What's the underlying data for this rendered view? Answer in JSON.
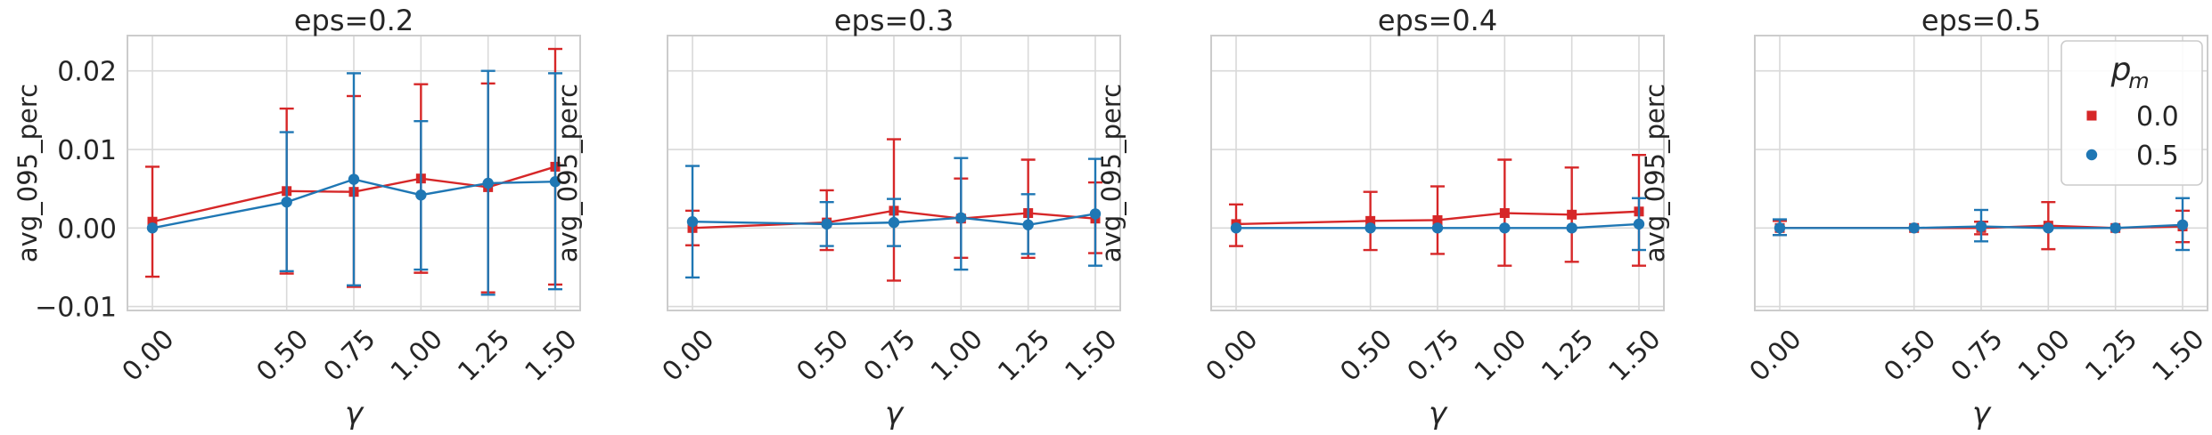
{
  "colors": {
    "s0": "#d62728",
    "s1": "#1f77b4",
    "grid": "#d9d9d9",
    "frame": "#cccccc"
  },
  "legend": {
    "title": "p",
    "title_sub": "m",
    "items": [
      {
        "label": "0.0",
        "marker": "square",
        "color": "#d62728"
      },
      {
        "label": "0.5",
        "marker": "circle",
        "color": "#1f77b4"
      }
    ]
  },
  "chart_data": [
    {
      "type": "line",
      "title": "eps=0.2",
      "xlabel": "γ",
      "ylabel": "avg_095_perc",
      "x": [
        0.0,
        0.5,
        0.75,
        1.0,
        1.25,
        1.5
      ],
      "x_tick_labels": [
        "0.00",
        "0.50",
        "0.75",
        "1.00",
        "1.25",
        "1.50"
      ],
      "y_ticks": [
        -0.01,
        0.0,
        0.01,
        0.02
      ],
      "y_tick_labels": [
        "−0.01",
        "0.00",
        "0.01",
        "0.02"
      ],
      "ylim": [
        -0.0105,
        0.0245
      ],
      "series": [
        {
          "name": "0.0",
          "marker": "square",
          "values": [
            0.0008,
            0.0047,
            0.0046,
            0.0063,
            0.0052,
            0.0078
          ],
          "err_low": [
            -0.0062,
            -0.0058,
            -0.0075,
            -0.0057,
            -0.0082,
            -0.0072
          ],
          "err_high": [
            0.0078,
            0.0152,
            0.0168,
            0.0183,
            0.0184,
            0.0228
          ]
        },
        {
          "name": "0.5",
          "marker": "circle",
          "values": [
            0.0,
            0.0033,
            0.0062,
            0.0042,
            0.0057,
            0.0059
          ],
          "err_low": [
            null,
            -0.0055,
            -0.0073,
            -0.0053,
            -0.0085,
            -0.0078
          ],
          "err_high": [
            null,
            0.0122,
            0.0197,
            0.0136,
            0.02,
            0.0197
          ]
        }
      ]
    },
    {
      "type": "line",
      "title": "eps=0.3",
      "xlabel": "γ",
      "ylabel": "avg_095_perc",
      "x": [
        0.0,
        0.5,
        0.75,
        1.0,
        1.25,
        1.5
      ],
      "x_tick_labels": [
        "0.00",
        "0.50",
        "0.75",
        "1.00",
        "1.25",
        "1.50"
      ],
      "y_ticks": [
        -0.01,
        0.0,
        0.01,
        0.02
      ],
      "y_tick_labels": [
        "",
        "",
        "",
        ""
      ],
      "ylim": [
        -0.0105,
        0.0245
      ],
      "series": [
        {
          "name": "0.0",
          "marker": "square",
          "values": [
            0.0,
            0.0007,
            0.0022,
            0.0012,
            0.0019,
            0.0012
          ],
          "err_low": [
            -0.0022,
            -0.0028,
            -0.0067,
            -0.0038,
            -0.0038,
            -0.0032
          ],
          "err_high": [
            0.0022,
            0.0048,
            0.0113,
            0.0063,
            0.0087,
            0.0058
          ]
        },
        {
          "name": "0.5",
          "marker": "circle",
          "values": [
            0.0008,
            0.0005,
            0.0007,
            0.0013,
            0.0004,
            0.0018
          ],
          "err_low": [
            -0.0063,
            -0.0023,
            -0.0023,
            -0.0053,
            -0.0033,
            -0.0048
          ],
          "err_high": [
            0.0079,
            0.0033,
            0.0037,
            0.0089,
            0.0043,
            0.0088
          ]
        }
      ]
    },
    {
      "type": "line",
      "title": "eps=0.4",
      "xlabel": "γ",
      "ylabel": "avg_095_perc",
      "x": [
        0.0,
        0.5,
        0.75,
        1.0,
        1.25,
        1.5
      ],
      "x_tick_labels": [
        "0.00",
        "0.50",
        "0.75",
        "1.00",
        "1.25",
        "1.50"
      ],
      "y_ticks": [
        -0.01,
        0.0,
        0.01,
        0.02
      ],
      "y_tick_labels": [
        "",
        "",
        "",
        ""
      ],
      "ylim": [
        -0.0105,
        0.0245
      ],
      "series": [
        {
          "name": "0.0",
          "marker": "square",
          "values": [
            0.0005,
            0.0009,
            0.001,
            0.0019,
            0.0017,
            0.0021
          ],
          "err_low": [
            -0.0023,
            -0.0028,
            -0.0033,
            -0.0048,
            -0.0043,
            -0.0048
          ],
          "err_high": [
            0.003,
            0.0046,
            0.0053,
            0.0087,
            0.0077,
            0.0093
          ]
        },
        {
          "name": "0.5",
          "marker": "circle",
          "values": [
            0.0,
            0.0,
            0.0,
            0.0,
            0.0,
            0.0005
          ],
          "err_low": [
            null,
            null,
            null,
            null,
            null,
            -0.0028
          ],
          "err_high": [
            null,
            null,
            null,
            null,
            null,
            0.0038
          ]
        }
      ]
    },
    {
      "type": "line",
      "title": "eps=0.5",
      "xlabel": "γ",
      "ylabel": "avg_095_perc",
      "x": [
        0.0,
        0.5,
        0.75,
        1.0,
        1.25,
        1.5
      ],
      "x_tick_labels": [
        "0.00",
        "0.50",
        "0.75",
        "1.00",
        "1.25",
        "1.50"
      ],
      "y_ticks": [
        -0.01,
        0.0,
        0.01,
        0.02
      ],
      "y_tick_labels": [
        "",
        "",
        "",
        ""
      ],
      "ylim": [
        -0.0105,
        0.0245
      ],
      "series": [
        {
          "name": "0.0",
          "marker": "square",
          "values": [
            0.0,
            0.0,
            0.0,
            0.0003,
            0.0,
            0.0002
          ],
          "err_low": [
            -0.0009,
            null,
            -0.0008,
            -0.0027,
            null,
            -0.0018
          ],
          "err_high": [
            0.0009,
            null,
            0.0008,
            0.0033,
            null,
            0.0022
          ]
        },
        {
          "name": "0.5",
          "marker": "circle",
          "values": [
            0.0,
            0.0,
            0.0002,
            0.0,
            0.0,
            0.0004
          ],
          "err_low": [
            -0.0009,
            null,
            -0.0017,
            null,
            null,
            -0.0028
          ],
          "err_high": [
            0.0011,
            null,
            0.0023,
            null,
            null,
            0.0038
          ]
        }
      ]
    }
  ]
}
